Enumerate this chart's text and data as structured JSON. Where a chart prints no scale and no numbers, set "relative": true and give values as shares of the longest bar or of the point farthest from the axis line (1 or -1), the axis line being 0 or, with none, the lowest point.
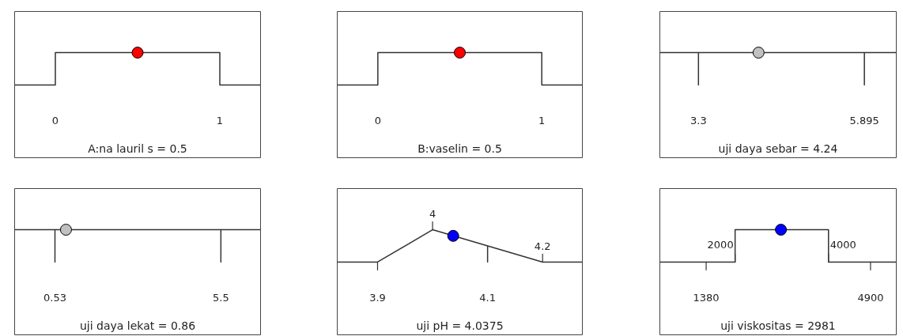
{
  "chart_data": [
    {
      "type": "line",
      "relative": true,
      "xlabel": "A:na lauril s = 0.5",
      "xlim": [
        -0.25,
        1.25
      ],
      "xticks": [
        0,
        1
      ],
      "series": [
        {
          "type": "line",
          "color": "#333333",
          "x": [
            -0.25,
            0,
            0,
            1,
            1,
            1.25
          ],
          "values": [
            0,
            0,
            1,
            1,
            0,
            0
          ]
        },
        {
          "type": "scatter",
          "color": "#ff0000",
          "marker": "circle",
          "x": [
            0.5
          ],
          "values": [
            1
          ]
        }
      ]
    },
    {
      "type": "line",
      "relative": true,
      "xlabel": "B:vaselin = 0.5",
      "xlim": [
        -0.25,
        1.25
      ],
      "xticks": [
        0,
        1
      ],
      "series": [
        {
          "type": "line",
          "color": "#333333",
          "x": [
            -0.25,
            0,
            0,
            1,
            1,
            1.25
          ],
          "values": [
            0,
            0,
            1,
            1,
            0,
            0
          ]
        },
        {
          "type": "scatter",
          "color": "#ff0000",
          "marker": "circle",
          "x": [
            0.5
          ],
          "values": [
            1
          ]
        }
      ]
    },
    {
      "type": "line",
      "relative": true,
      "xlabel": "uji daya sebar = 4.24",
      "xlim": [
        2.69,
        6.4
      ],
      "xticks": [
        3.3,
        5.895
      ],
      "series": [
        {
          "type": "line",
          "color": "#333333",
          "x": [
            2.69,
            3.3,
            3.3,
            3.3,
            5.895,
            5.895,
            5.895,
            6.4
          ],
          "values": [
            1,
            1,
            0,
            1,
            1,
            0,
            1,
            1
          ]
        },
        {
          "type": "scatter",
          "color": "#c0c0c0",
          "marker": "circle",
          "x": [
            4.24
          ],
          "values": [
            1
          ]
        }
      ]
    },
    {
      "type": "line",
      "relative": true,
      "xlabel": "uji daya lekat = 0.86",
      "xlim": [
        -0.69,
        6.7
      ],
      "xticks": [
        0.53,
        5.5
      ],
      "series": [
        {
          "type": "line",
          "color": "#333333",
          "x": [
            -0.69,
            0.53,
            0.53,
            0.53,
            5.5,
            5.5,
            5.5,
            6.7
          ],
          "values": [
            1,
            1,
            0,
            1,
            1,
            0,
            1,
            1
          ]
        },
        {
          "type": "scatter",
          "color": "#c0c0c0",
          "marker": "circle",
          "x": [
            0.86
          ],
          "values": [
            1
          ]
        }
      ]
    },
    {
      "type": "line",
      "relative": true,
      "xlabel": "uji pH = 4.0375",
      "xlim": [
        3.826,
        4.273
      ],
      "xticks": [
        3.9,
        4.1
      ],
      "annotations": [
        {
          "text": "4",
          "x": 4,
          "y": 1
        },
        {
          "text": "4.2",
          "x": 4.2,
          "y": 0
        }
      ],
      "series": [
        {
          "type": "line",
          "color": "#333333",
          "x": [
            3.826,
            3.9,
            4,
            4.1,
            4.1,
            4.1,
            4.2,
            4.273
          ],
          "values": [
            0,
            0,
            1,
            0.5,
            0,
            0.5,
            0,
            0
          ]
        },
        {
          "type": "scatter",
          "color": "#0000ff",
          "marker": "circle",
          "x": [
            4.0375
          ],
          "values": [
            0.81
          ]
        }
      ]
    },
    {
      "type": "line",
      "relative": true,
      "xlabel": "uji viskositas = 2981",
      "xlim": [
        380,
        5460
      ],
      "xticks": [
        1380,
        4900
      ],
      "annotations": [
        {
          "text": "2000",
          "x": 2000,
          "y": 0.5
        },
        {
          "text": "4000",
          "x": 4000,
          "y": 0.5
        }
      ],
      "series": [
        {
          "type": "line",
          "color": "#333333",
          "x": [
            380,
            2000,
            2000,
            4000,
            4000,
            5460
          ],
          "values": [
            0,
            0,
            1,
            1,
            0,
            0
          ]
        },
        {
          "type": "scatter",
          "color": "#0000ff",
          "marker": "circle",
          "x": [
            2981
          ],
          "values": [
            1
          ]
        }
      ]
    }
  ]
}
